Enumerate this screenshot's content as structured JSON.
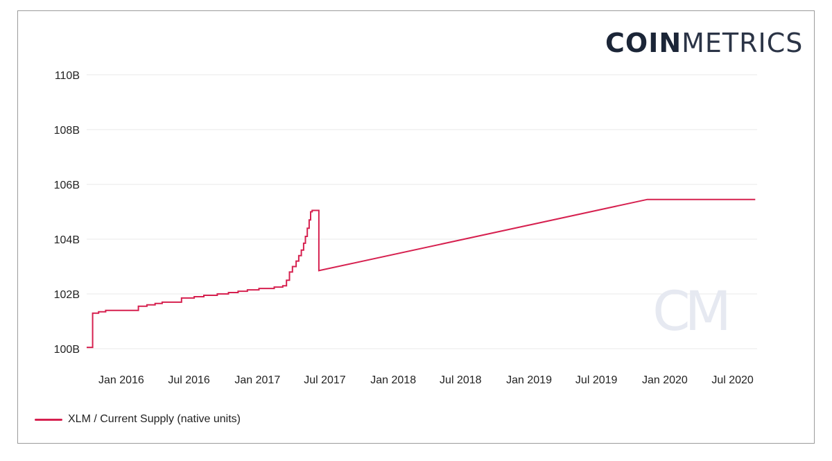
{
  "brand": {
    "bold": "COIN",
    "light": "METRICS",
    "watermark": "CM"
  },
  "colors": {
    "series": "#d6204f",
    "grid": "#e9e9e9",
    "text": "#222222"
  },
  "chart_data": {
    "type": "line",
    "xlabel": "",
    "ylabel": "",
    "ylim": [
      99.9,
      110.2
    ],
    "xlim": [
      "2015-09-30",
      "2020-09-05"
    ],
    "yticks": [
      100,
      102,
      104,
      106,
      108,
      110
    ],
    "ytick_labels": [
      "100B",
      "102B",
      "104B",
      "106B",
      "108B",
      "110B"
    ],
    "xticks": [
      "2016-01-01",
      "2016-07-01",
      "2017-01-01",
      "2017-07-01",
      "2018-01-01",
      "2018-07-01",
      "2019-01-01",
      "2019-07-01",
      "2020-01-01",
      "2020-07-01"
    ],
    "xtick_labels": [
      "Jan 2016",
      "Jul 2016",
      "Jan 2017",
      "Jul 2017",
      "Jan 2018",
      "Jul 2018",
      "Jan 2019",
      "Jul 2019",
      "Jan 2020",
      "Jul 2020"
    ],
    "grid": true,
    "legend_position": "bottom-left",
    "series": [
      {
        "name": "XLM / Current Supply (native units)",
        "step": true,
        "points": [
          [
            "2015-09-30",
            100.05
          ],
          [
            "2015-10-15",
            100.05
          ],
          [
            "2015-10-16",
            101.3
          ],
          [
            "2015-11-01",
            101.35
          ],
          [
            "2015-11-20",
            101.4
          ],
          [
            "2016-02-15",
            101.4
          ],
          [
            "2016-02-16",
            101.55
          ],
          [
            "2016-03-10",
            101.6
          ],
          [
            "2016-04-01",
            101.65
          ],
          [
            "2016-04-20",
            101.7
          ],
          [
            "2016-06-10",
            101.7
          ],
          [
            "2016-06-11",
            101.85
          ],
          [
            "2016-07-15",
            101.9
          ],
          [
            "2016-08-10",
            101.95
          ],
          [
            "2016-09-15",
            102.0
          ],
          [
            "2016-10-15",
            102.05
          ],
          [
            "2016-11-10",
            102.1
          ],
          [
            "2016-12-05",
            102.15
          ],
          [
            "2017-01-05",
            102.2
          ],
          [
            "2017-02-15",
            102.25
          ],
          [
            "2017-03-10",
            102.3
          ],
          [
            "2017-03-20",
            102.5
          ],
          [
            "2017-03-28",
            102.8
          ],
          [
            "2017-04-05",
            103.0
          ],
          [
            "2017-04-15",
            103.2
          ],
          [
            "2017-04-22",
            103.4
          ],
          [
            "2017-04-29",
            103.6
          ],
          [
            "2017-05-05",
            103.85
          ],
          [
            "2017-05-10",
            104.1
          ],
          [
            "2017-05-15",
            104.4
          ],
          [
            "2017-05-20",
            104.7
          ],
          [
            "2017-05-24",
            105.0
          ],
          [
            "2017-05-28",
            105.05
          ],
          [
            "2017-06-15",
            105.0
          ],
          [
            "2017-06-15",
            102.85
          ],
          [
            "2019-11-15",
            105.45
          ],
          [
            "2020-08-31",
            105.45
          ]
        ]
      }
    ]
  }
}
